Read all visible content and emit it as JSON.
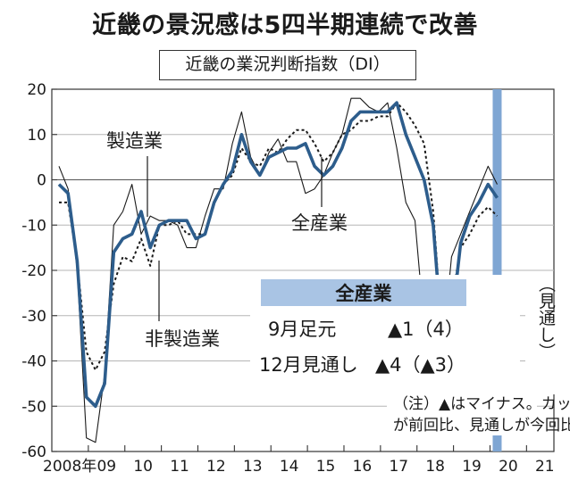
{
  "title": "近畿の景況感は5四半期連続で改善",
  "chart_data": {
    "type": "line",
    "subtitle": "近畿の業況判断指数（DI）",
    "ylim": [
      -60,
      20
    ],
    "yticks": [
      "20",
      "10",
      "0",
      "-10",
      "-20",
      "-30",
      "-40",
      "-50",
      "-60"
    ],
    "xticks": [
      "2008年",
      "09",
      "10",
      "11",
      "12",
      "13",
      "14",
      "15",
      "16",
      "17",
      "18",
      "19",
      "20",
      "21"
    ],
    "forecast_label": "（見通し）",
    "labels": {
      "manufacturing": "製造業",
      "all": "全産業",
      "nonmanufacturing": "非製造業"
    },
    "series": [
      {
        "name": "製造業",
        "style": "thin",
        "values": [
          3,
          -2,
          -20,
          -57,
          -58,
          -43,
          -10,
          -7,
          -1,
          -12,
          -8,
          -9,
          -9,
          -10,
          -15,
          -15,
          -8,
          -2,
          -2,
          8,
          15,
          5,
          1,
          6,
          9,
          4,
          4,
          -3,
          -2,
          1,
          6,
          10,
          18,
          18,
          16,
          15,
          17,
          7,
          -5,
          -9,
          -32,
          -42,
          -38,
          -17,
          -12,
          -7,
          -2,
          3,
          -1
        ],
        "color": "#1a1a1a"
      },
      {
        "name": "全産業",
        "style": "bold",
        "values": [
          -1,
          -3,
          -18,
          -48,
          -50,
          -45,
          -16,
          -13,
          -12,
          -7,
          -15,
          -10,
          -9,
          -9,
          -9,
          -13,
          -12,
          -5,
          -1,
          2,
          10,
          4,
          1,
          5,
          6,
          7,
          7,
          8,
          3,
          1,
          3,
          7,
          13,
          15,
          15,
          15,
          15,
          17,
          10,
          5,
          0,
          -10,
          -36,
          -32,
          -14,
          -8,
          -5,
          -1,
          -4
        ],
        "color": "#2d5d8c"
      },
      {
        "name": "非製造業",
        "style": "dotted",
        "values": [
          -5,
          -5,
          -18,
          -38,
          -42,
          -38,
          -23,
          -17,
          -18,
          -13,
          -19,
          -10,
          -10,
          -9,
          -12,
          -12,
          -12,
          -5,
          -1,
          1,
          7,
          4,
          3,
          7,
          6,
          9,
          11,
          11,
          8,
          4,
          6,
          10,
          11,
          13,
          13,
          14,
          14,
          17,
          15,
          12,
          8,
          -7,
          -35,
          -27,
          -15,
          -12,
          -8,
          -6,
          -8
        ],
        "color": "#1a1a1a"
      }
    ],
    "table": {
      "header": "全産業",
      "rows": [
        [
          "9月足元",
          "▲1（4）"
        ],
        [
          "12月見通し",
          "▲4（▲3）"
        ]
      ]
    },
    "note": [
      "（注）▲はマイナス。カッコ内は足元",
      "が前回比、見通しが今回比"
    ],
    "colors": {
      "all_industry": "#2d5d8c",
      "forecast_bar": "#7fa6d3",
      "table_header": "#a9c4e4"
    }
  }
}
